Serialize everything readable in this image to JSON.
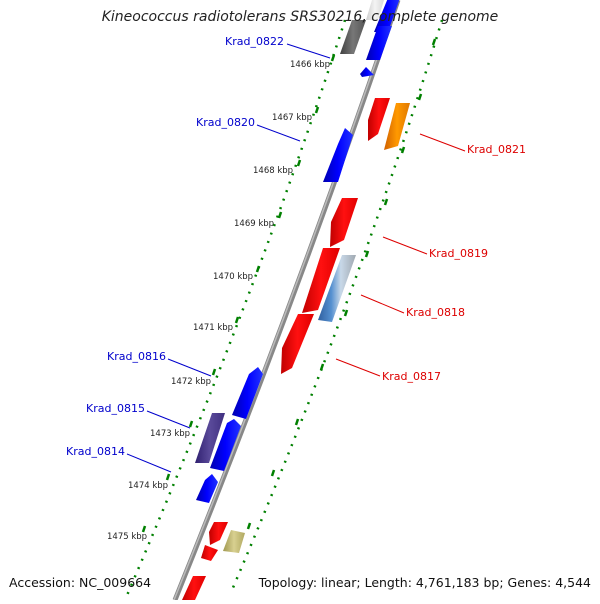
{
  "title": "Kineococcus radiotolerans SRS30216, complete genome",
  "footer": {
    "accession": "Accession: NC_009664",
    "summary": "Topology: linear; Length: 4,761,183 bp; Genes: 4,544"
  },
  "colors": {
    "forward_strand": "#0000ff",
    "reverse_strand": "#ff0000",
    "forward_label": "#0000cc",
    "reverse_label": "#dd0000",
    "tick": "#008000",
    "backbone": "#888888"
  },
  "scale_labels": [
    "1466 kbp",
    "1467 kbp",
    "1468 kbp",
    "1469 kbp",
    "1470 kbp",
    "1471 kbp",
    "1472 kbp",
    "1473 kbp",
    "1474 kbp",
    "1475 kbp"
  ],
  "gene_labels": [
    {
      "text": "Krad_0822",
      "strand": "forward"
    },
    {
      "text": "Krad_0820",
      "strand": "forward"
    },
    {
      "text": "Krad_0816",
      "strand": "forward"
    },
    {
      "text": "Krad_0815",
      "strand": "forward"
    },
    {
      "text": "Krad_0814",
      "strand": "forward"
    },
    {
      "text": "Krad_0821",
      "strand": "reverse"
    },
    {
      "text": "Krad_0819",
      "strand": "reverse"
    },
    {
      "text": "Krad_0818",
      "strand": "reverse"
    },
    {
      "text": "Krad_0817",
      "strand": "reverse"
    }
  ]
}
